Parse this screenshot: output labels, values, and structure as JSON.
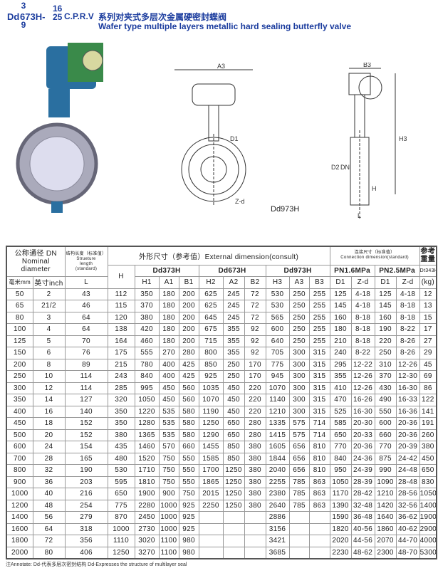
{
  "title": {
    "prefix": "Dd",
    "model_top": "3",
    "model_mid": "673H-",
    "model_bottom": "9",
    "pressure_top": "16",
    "pressure_bottom": "25",
    "suffix": "C.P.R.V",
    "chinese": "系列对夹式多层次金属硬密封蝶阀",
    "english": "Wafer type multiple layers metallic hard sealing butterfly valve"
  },
  "drawings": {
    "labels": {
      "a3": "A3",
      "b3": "B3",
      "d1": "D1",
      "zd": "Z-d",
      "h3": "H3",
      "d2": "D2",
      "dn": "DN",
      "h": "H",
      "l": "L"
    },
    "caption": "Dd973H"
  },
  "table": {
    "headers": {
      "nominal": "公称通径 DN",
      "nominal_en1": "Nominal",
      "nominal_en2": "diameter",
      "struct_cn": "结构长度（标准值）",
      "struct_en1": "Strueture",
      "struct_en2": "length",
      "struct_en3": "(standard)",
      "external": "外形尺寸（参考值）External dimension(consult)",
      "connection_cn": "连接尺寸（标准值）",
      "connection_en": "Connection dimension(standard)",
      "weight_cn": "参考重量",
      "h": "H",
      "dd373": "Dd373H",
      "dd673": "Dd673H",
      "dd973": "Dd973H",
      "pn16": "PN1.6MPa",
      "pn25": "PN2.5MPa",
      "dt343": "Dt343H",
      "mm": "毫米mm",
      "inch": "英寸inch",
      "l": "L",
      "h1": "H1",
      "a1": "A1",
      "b1": "B1",
      "h2": "H2",
      "a2": "A2",
      "b2": "B2",
      "h3": "H3",
      "a3": "A3",
      "b3": "B3",
      "d1a": "D1",
      "zda": "Z-d",
      "d1b": "D1",
      "zdb": "Z-d",
      "kg": "(kg)"
    },
    "rows": [
      [
        "50",
        "2",
        "43",
        "112",
        "350",
        "180",
        "200",
        "625",
        "245",
        "72",
        "530",
        "250",
        "255",
        "125",
        "4-18",
        "125",
        "4-18",
        "12"
      ],
      [
        "65",
        "21/2",
        "46",
        "115",
        "370",
        "180",
        "200",
        "625",
        "245",
        "72",
        "530",
        "250",
        "255",
        "145",
        "4-18",
        "145",
        "8-18",
        "13"
      ],
      [
        "80",
        "3",
        "64",
        "120",
        "380",
        "180",
        "200",
        "645",
        "245",
        "72",
        "565",
        "250",
        "255",
        "160",
        "8-18",
        "160",
        "8-18",
        "15"
      ],
      [
        "100",
        "4",
        "64",
        "138",
        "420",
        "180",
        "200",
        "675",
        "355",
        "92",
        "600",
        "250",
        "255",
        "180",
        "8-18",
        "190",
        "8-22",
        "17"
      ],
      [
        "125",
        "5",
        "70",
        "164",
        "460",
        "180",
        "200",
        "715",
        "355",
        "92",
        "640",
        "250",
        "255",
        "210",
        "8-18",
        "220",
        "8-26",
        "27"
      ],
      [
        "150",
        "6",
        "76",
        "175",
        "555",
        "270",
        "280",
        "800",
        "355",
        "92",
        "705",
        "300",
        "315",
        "240",
        "8-22",
        "250",
        "8-26",
        "29"
      ],
      [
        "200",
        "8",
        "89",
        "215",
        "780",
        "400",
        "425",
        "850",
        "250",
        "170",
        "775",
        "300",
        "315",
        "295",
        "12-22",
        "310",
        "12-26",
        "45"
      ],
      [
        "250",
        "10",
        "114",
        "243",
        "840",
        "400",
        "425",
        "925",
        "250",
        "170",
        "945",
        "300",
        "315",
        "355",
        "12-26",
        "370",
        "12-30",
        "69"
      ],
      [
        "300",
        "12",
        "114",
        "285",
        "995",
        "450",
        "560",
        "1035",
        "450",
        "220",
        "1070",
        "300",
        "315",
        "410",
        "12-26",
        "430",
        "16-30",
        "86"
      ],
      [
        "350",
        "14",
        "127",
        "320",
        "1050",
        "450",
        "560",
        "1070",
        "450",
        "220",
        "1140",
        "300",
        "315",
        "470",
        "16-26",
        "490",
        "16-33",
        "122"
      ],
      [
        "400",
        "16",
        "140",
        "350",
        "1220",
        "535",
        "580",
        "1190",
        "450",
        "220",
        "1210",
        "300",
        "315",
        "525",
        "16-30",
        "550",
        "16-36",
        "141"
      ],
      [
        "450",
        "18",
        "152",
        "350",
        "1280",
        "535",
        "580",
        "1250",
        "650",
        "280",
        "1335",
        "575",
        "714",
        "585",
        "20-30",
        "600",
        "20-36",
        "191"
      ],
      [
        "500",
        "20",
        "152",
        "380",
        "1365",
        "535",
        "580",
        "1290",
        "650",
        "280",
        "1415",
        "575",
        "714",
        "650",
        "20-33",
        "660",
        "20-36",
        "260"
      ],
      [
        "600",
        "24",
        "154",
        "435",
        "1460",
        "570",
        "660",
        "1455",
        "850",
        "380",
        "1605",
        "656",
        "810",
        "770",
        "20-36",
        "770",
        "20-39",
        "380"
      ],
      [
        "700",
        "28",
        "165",
        "480",
        "1520",
        "750",
        "550",
        "1585",
        "850",
        "380",
        "1844",
        "656",
        "810",
        "840",
        "24-36",
        "875",
        "24-42",
        "450"
      ],
      [
        "800",
        "32",
        "190",
        "530",
        "1710",
        "750",
        "550",
        "1700",
        "1250",
        "380",
        "2040",
        "656",
        "810",
        "950",
        "24-39",
        "990",
        "24-48",
        "650"
      ],
      [
        "900",
        "36",
        "203",
        "595",
        "1810",
        "750",
        "550",
        "1865",
        "1250",
        "380",
        "2255",
        "785",
        "863",
        "1050",
        "28-39",
        "1090",
        "28-48",
        "830"
      ],
      [
        "1000",
        "40",
        "216",
        "650",
        "1900",
        "900",
        "750",
        "2015",
        "1250",
        "380",
        "2380",
        "785",
        "863",
        "1170",
        "28-42",
        "1210",
        "28-56",
        "1050"
      ],
      [
        "1200",
        "48",
        "254",
        "775",
        "2280",
        "1000",
        "925",
        "2250",
        "1250",
        "380",
        "2640",
        "785",
        "863",
        "1390",
        "32-48",
        "1420",
        "32-56",
        "1400"
      ],
      [
        "1400",
        "56",
        "279",
        "870",
        "2450",
        "1000",
        "925",
        "",
        "",
        "",
        "2886",
        "",
        "",
        "1590",
        "36-48",
        "1640",
        "36-62",
        "1900"
      ],
      [
        "1600",
        "64",
        "318",
        "1000",
        "2730",
        "1000",
        "925",
        "",
        "",
        "",
        "3156",
        "",
        "",
        "1820",
        "40-56",
        "1860",
        "40-62",
        "2900"
      ],
      [
        "1800",
        "72",
        "356",
        "1110",
        "3020",
        "1100",
        "980",
        "",
        "",
        "",
        "3421",
        "",
        "",
        "2020",
        "44-56",
        "2070",
        "44-70",
        "4000"
      ],
      [
        "2000",
        "80",
        "406",
        "1250",
        "3270",
        "1100",
        "980",
        "",
        "",
        "",
        "3685",
        "",
        "",
        "2230",
        "48-62",
        "2300",
        "48-70",
        "5300"
      ]
    ]
  },
  "note": "注Annotate: Dd-代表多层次密封结构 Dd-Expresses the structure of multilayer seal",
  "colors": {
    "title": "#1b3c9e",
    "actuator": "#2a6fa0",
    "gearbox": "#3a8a4a"
  }
}
